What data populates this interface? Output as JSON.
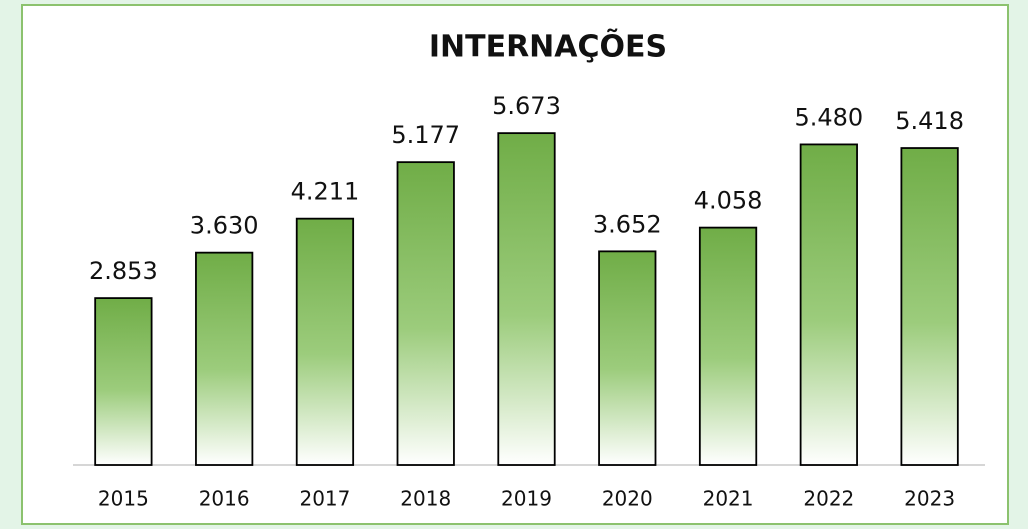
{
  "chart_data": {
    "type": "bar",
    "title": "INTERNAÇÕES",
    "categories": [
      "2015",
      "2016",
      "2017",
      "2018",
      "2019",
      "2020",
      "2021",
      "2022",
      "2023"
    ],
    "values": [
      2853,
      3630,
      4211,
      5177,
      5673,
      3652,
      4058,
      5480,
      5418
    ],
    "value_labels": [
      "2.853",
      "3.630",
      "4.211",
      "5.177",
      "5.673",
      "3.652",
      "4.058",
      "5.480",
      "5.418"
    ],
    "color": "#70ad47",
    "ylim": [
      0,
      6000
    ]
  }
}
